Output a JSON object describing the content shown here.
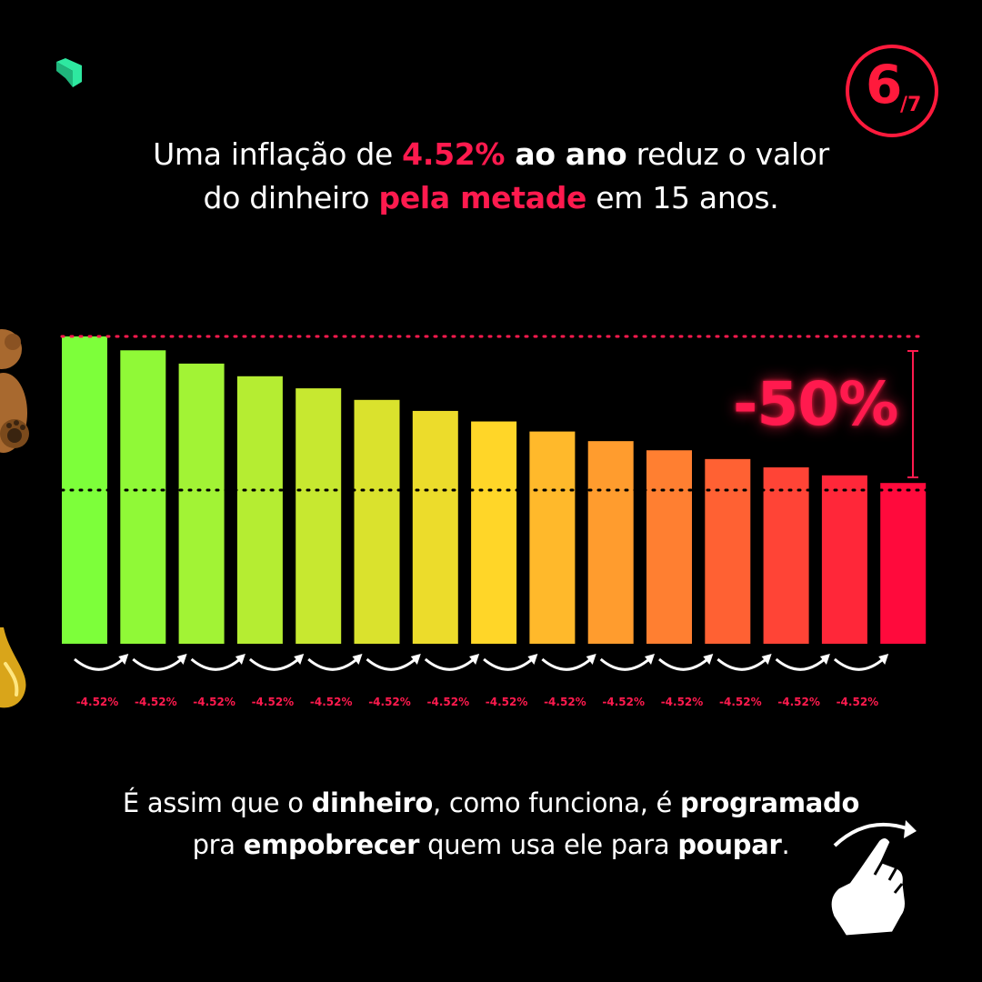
{
  "page": {
    "current": "6",
    "total": "/7"
  },
  "headline": {
    "line1": {
      "pre": "Uma inflação de ",
      "rate": "4.52%",
      "mid_bold": " ao ano",
      "post": " reduz o valor"
    },
    "line2": {
      "pre": "do dinheiro ",
      "highlight": "pela metade",
      "post": " em 15 anos."
    }
  },
  "chart_data": {
    "type": "bar",
    "bar_values": [
      100,
      95.48,
      91.16,
      87.04,
      83.11,
      79.35,
      75.76,
      72.33,
      69.06,
      65.93,
      62.95,
      60.1,
      57.39,
      54.79,
      52.31
    ],
    "step_labels": [
      "-4.52%",
      "-4.52%",
      "-4.52%",
      "-4.52%",
      "-4.52%",
      "-4.52%",
      "-4.52%",
      "-4.52%",
      "-4.52%",
      "-4.52%",
      "-4.52%",
      "-4.52%",
      "-4.52%",
      "-4.52%"
    ],
    "reference_lines": [
      100,
      50
    ],
    "ylim": [
      0,
      100
    ],
    "annotation": "-50%",
    "color_start": "#7dff3a",
    "color_end": "#ff0a3c",
    "accent": "#ff1a4e"
  },
  "footer": {
    "line1": {
      "p1": "É assim que o ",
      "b1": "dinheiro",
      "p2": ", como funciona, é ",
      "b2": "programado"
    },
    "line2": {
      "p1": "pra ",
      "b1": "empobrecer",
      "p2": " quem usa ele para ",
      "b2": "poupar",
      "p3": "."
    }
  },
  "icons": {
    "logo": "brand-logo-icon",
    "bear": "teddy-bear-icon",
    "drop": "oil-drop-icon",
    "hand": "swipe-hand-icon"
  }
}
